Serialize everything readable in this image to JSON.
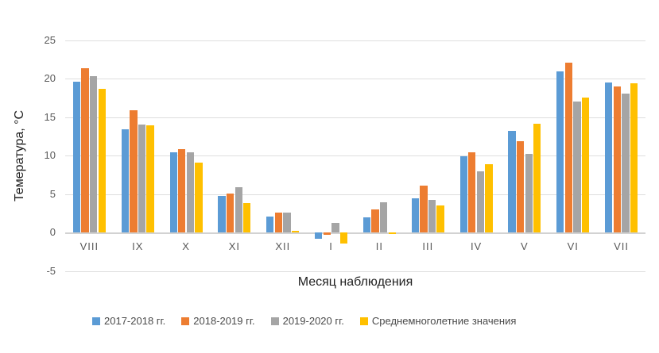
{
  "chart_data": {
    "type": "bar",
    "title": "",
    "xlabel": "Месяц наблюдения",
    "ylabel": "Темература, °C",
    "ylim": [
      -5,
      25
    ],
    "yticks": [
      25,
      20,
      15,
      10,
      5,
      0,
      -5
    ],
    "grid": true,
    "legend_position": "bottom",
    "categories": [
      "VIII",
      "IX",
      "X",
      "XI",
      "XII",
      "I",
      "II",
      "III",
      "IV",
      "V",
      "VI",
      "VII"
    ],
    "series": [
      {
        "name": "2017-2018 гг.",
        "color": "#5B9BD5",
        "values": [
          19.6,
          13.4,
          10.5,
          4.8,
          2.1,
          -0.8,
          2.0,
          4.5,
          9.9,
          13.2,
          21.0,
          19.5
        ]
      },
      {
        "name": "2018-2019 гг.",
        "color": "#ED7D31",
        "values": [
          21.4,
          15.9,
          10.9,
          5.1,
          2.6,
          -0.3,
          3.0,
          6.1,
          10.5,
          11.9,
          22.1,
          19.0
        ]
      },
      {
        "name": "2019-2020 гг.",
        "color": "#A5A5A5",
        "values": [
          20.4,
          14.1,
          10.5,
          5.9,
          2.6,
          1.3,
          4.0,
          4.3,
          8.0,
          10.2,
          17.1,
          18.1
        ]
      },
      {
        "name": "Среднемноголетние значения",
        "color": "#FFC000",
        "values": [
          18.7,
          14.0,
          9.1,
          3.8,
          0.2,
          -1.4,
          -0.2,
          3.5,
          8.9,
          14.2,
          17.6,
          19.4
        ]
      }
    ]
  },
  "colors": {
    "background": "#FFFFFF",
    "gridline": "#DEDEDE",
    "tick_text": "#595959",
    "axis_title_text": "#1F1F1F"
  }
}
